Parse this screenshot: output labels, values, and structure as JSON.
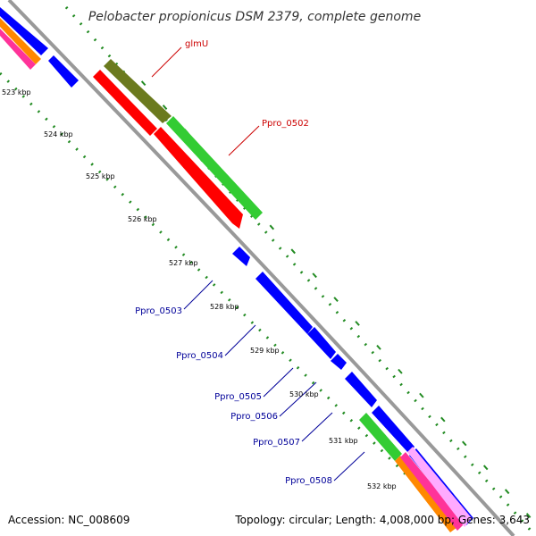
{
  "title": "Pelobacter propionicus DSM 2379, complete genome",
  "footer": {
    "accession": "Accession: NC_008609",
    "summary": "Topology: circular; Length: 4,008,000 bp; Genes: 3,643"
  },
  "ticks": [
    "523 kbp",
    "524 kbp",
    "525 kbp",
    "526 kbp",
    "527 kbp",
    "528 kbp",
    "529 kbp",
    "530 kbp",
    "531 kbp",
    "532 kbp"
  ],
  "gene_labels": {
    "glmU": "glmU",
    "ppro_0502": "Ppro_0502",
    "ppro_0503": "Ppro_0503",
    "ppro_0504": "Ppro_0504",
    "ppro_0505": "Ppro_0505",
    "ppro_0506": "Ppro_0506",
    "ppro_0507": "Ppro_0507",
    "ppro_0508": "Ppro_0508"
  },
  "colors": {
    "forward_label": "#cc0000",
    "reverse_label": "#000099",
    "cds_blue": "#0000ff",
    "cds_red": "#ff0000",
    "cds_green": "#33cc33",
    "cds_olive": "#6b7a1e",
    "backbone": "#999999",
    "gc_dots": "#228b22"
  }
}
